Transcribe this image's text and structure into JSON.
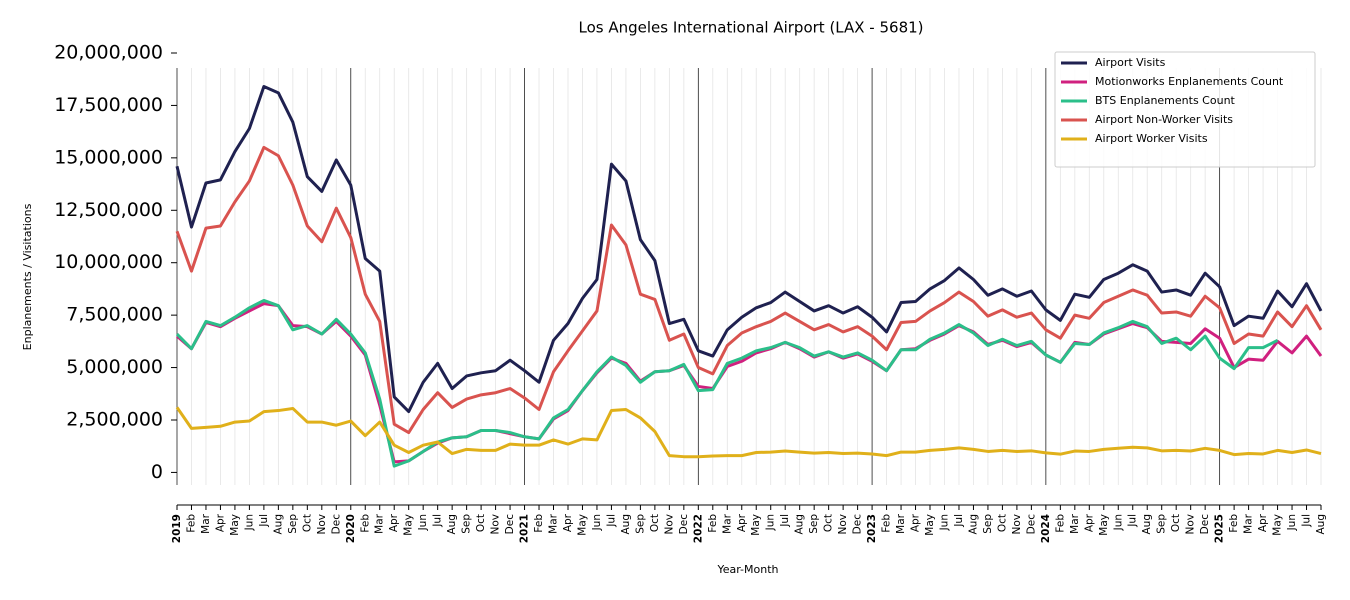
{
  "chart_data": {
    "type": "line",
    "title": "Los Angeles International Airport (LAX - 5681)",
    "x_label": "Year-Month",
    "y_label": "Enplanements / Visitations",
    "categories": [
      "2019",
      "Feb",
      "Mar",
      "Apr",
      "May",
      "Jun",
      "Jul",
      "Aug",
      "Sep",
      "Oct",
      "Nov",
      "Dec",
      "2020",
      "Feb",
      "Mar",
      "Apr",
      "May",
      "Jun",
      "Jul",
      "Aug",
      "Sep",
      "Oct",
      "Nov",
      "Dec",
      "2021",
      "Feb",
      "Mar",
      "Apr",
      "May",
      "Jun",
      "Jul",
      "Aug",
      "Sep",
      "Oct",
      "Nov",
      "Dec",
      "2022",
      "Feb",
      "Mar",
      "Apr",
      "May",
      "Jun",
      "Jul",
      "Aug",
      "Sep",
      "Oct",
      "Nov",
      "Dec",
      "2023",
      "Feb",
      "Mar",
      "Apr",
      "May",
      "Jun",
      "Jul",
      "Aug",
      "Sep",
      "Oct",
      "Nov",
      "Dec",
      "2024",
      "Feb",
      "Mar",
      "Apr",
      "May",
      "Jun",
      "Jul",
      "Aug",
      "Sep",
      "Oct",
      "Nov",
      "Dec",
      "2025",
      "Feb",
      "Mar",
      "Apr",
      "May",
      "Jun",
      "Jul",
      "Aug"
    ],
    "ylim": [
      -600000,
      20000000
    ],
    "yticks": [
      0,
      {
        "value": 2500000,
        "label": "2,500,000"
      },
      {
        "value": 5000000,
        "label": "5,000,000"
      },
      {
        "value": 7500000,
        "label": "7,500,000"
      },
      {
        "value": 10000000,
        "label": "10,000,000"
      },
      {
        "value": 12500000,
        "label": "12,500,000"
      },
      {
        "value": 15000000,
        "label": "15,000,000"
      },
      {
        "value": 17500000,
        "label": "17,500,000"
      },
      {
        "value": 20000000,
        "label": "20,000,000"
      }
    ],
    "grid": true,
    "legend_position": "upper right",
    "series": [
      {
        "name": "Airport Visits",
        "color": "#1f2150",
        "values": [
          14600000.0,
          11700000.0,
          13800000.0,
          13950000.0,
          15300000.0,
          16400000.0,
          18400000.0,
          18100000.0,
          16700000.0,
          14100000.0,
          13400000.0,
          14900000.0,
          13700000.0,
          10200000.0,
          9600000.0,
          3600000.0,
          2900000.0,
          4300000.0,
          5200000.0,
          4000000.0,
          4600000.0,
          4750000.0,
          4850000.0,
          5350000.0,
          4850000.0,
          4300000.0,
          6300000.0,
          7100000.0,
          8300000.0,
          9200000.0,
          14700000.0,
          13900000.0,
          11100000.0,
          10100000.0,
          7100000.0,
          7300000.0,
          5800000.0,
          5550000.0,
          6800000.0,
          7400000.0,
          7850000.0,
          8100000.0,
          8600000.0,
          8150000.0,
          7700000.0,
          7950000.0,
          7600000.0,
          7900000.0,
          7400000.0,
          6700000.0,
          8100000.0,
          8150000.0,
          8750000.0,
          9150000.0,
          9750000.0,
          9200000.0,
          8450000.0,
          8750000.0,
          8400000.0,
          8650000.0,
          7750000.0,
          7250000.0,
          8500000.0,
          8350000.0,
          9200000.0,
          9500000.0,
          9900000.0,
          9600000.0,
          8600000.0,
          8700000.0,
          8450000.0,
          9500000.0,
          8850000.0,
          7000000.0,
          7450000.0,
          7350000.0,
          8650000.0,
          7900000.0,
          9000000.0,
          7700000.0
        ]
      },
      {
        "name": "Motionworks Enplanements Count",
        "color": "#d0207f",
        "values": [
          6500000.0,
          5900000.0,
          7150000.0,
          6950000.0,
          7350000.0,
          7700000.0,
          8050000.0,
          7950000.0,
          7000000.0,
          6950000.0,
          6600000.0,
          7200000.0,
          6500000.0,
          5600000.0,
          3200000.0,
          500000.0,
          550000.0,
          1000000.0,
          1400000.0,
          1650000.0,
          1700000.0,
          2000000.0,
          2000000.0,
          1850000.0,
          1700000.0,
          1600000.0,
          2550000.0,
          2950000.0,
          3900000.0,
          4750000.0,
          5450000.0,
          5200000.0,
          4350000.0,
          4800000.0,
          4850000.0,
          5100000.0,
          4100000.0,
          4000000.0,
          5050000.0,
          5300000.0,
          5700000.0,
          5900000.0,
          6200000.0,
          5900000.0,
          5500000.0,
          5750000.0,
          5450000.0,
          5650000.0,
          5300000.0,
          4850000.0,
          5850000.0,
          5900000.0,
          6300000.0,
          6600000.0,
          7000000.0,
          6700000.0,
          6100000.0,
          6300000.0,
          6000000.0,
          6200000.0,
          5600000.0,
          5250000.0,
          6200000.0,
          6100000.0,
          6600000.0,
          6850000.0,
          7100000.0,
          6900000.0,
          6250000.0,
          6200000.0,
          6150000.0,
          6850000.0,
          6400000.0,
          5000000.0,
          5400000.0,
          5350000.0,
          6250000.0,
          5700000.0,
          6500000.0,
          5550000.0
        ]
      },
      {
        "name": "BTS Enplanements Count",
        "color": "#2bbf8a",
        "values": [
          6600000.0,
          5900000.0,
          7200000.0,
          7000000.0,
          7400000.0,
          7850000.0,
          8200000.0,
          7950000.0,
          6800000.0,
          7000000.0,
          6600000.0,
          7300000.0,
          6600000.0,
          5700000.0,
          3500000.0,
          300000.0,
          550000.0,
          1000000.0,
          1450000.0,
          1650000.0,
          1700000.0,
          2000000.0,
          2000000.0,
          1900000.0,
          1700000.0,
          1600000.0,
          2600000.0,
          3000000.0,
          3900000.0,
          4800000.0,
          5500000.0,
          5100000.0,
          4300000.0,
          4800000.0,
          4850000.0,
          5150000.0,
          3900000.0,
          3950000.0,
          5200000.0,
          5450000.0,
          5800000.0,
          5950000.0,
          6200000.0,
          5950000.0,
          5550000.0,
          5750000.0,
          5500000.0,
          5700000.0,
          5350000.0,
          4850000.0,
          5850000.0,
          5850000.0,
          6350000.0,
          6650000.0,
          7050000.0,
          6650000.0,
          6050000.0,
          6350000.0,
          6050000.0,
          6250000.0,
          5600000.0,
          5250000.0,
          6150000.0,
          6100000.0,
          6650000.0,
          6900000.0,
          7200000.0,
          6950000.0,
          6150000.0,
          6400000.0,
          5850000.0,
          6500000.0,
          5450000.0,
          4950000.0,
          5950000.0,
          5950000.0,
          6300000.0,
          null,
          null,
          null
        ]
      },
      {
        "name": "Airport Non-Worker Visits",
        "color": "#d9534f",
        "values": [
          11500000.0,
          9600000.0,
          11650000.0,
          11750000.0,
          12900000.0,
          13900000.0,
          15500000.0,
          15100000.0,
          13700000.0,
          11750000.0,
          11000000.0,
          12600000.0,
          11200000.0,
          8500000.0,
          7200000.0,
          2300000.0,
          1900000.0,
          3000000.0,
          3800000.0,
          3100000.0,
          3500000.0,
          3700000.0,
          3800000.0,
          4000000.0,
          3550000.0,
          3000000.0,
          4800000.0,
          5800000.0,
          6750000.0,
          7700000.0,
          11800000.0,
          10850000.0,
          8500000.0,
          8250000.0,
          6300000.0,
          6600000.0,
          5000000.0,
          4700000.0,
          6050000.0,
          6650000.0,
          6950000.0,
          7200000.0,
          7600000.0,
          7200000.0,
          6800000.0,
          7050000.0,
          6700000.0,
          6950000.0,
          6500000.0,
          5850000.0,
          7150000.0,
          7200000.0,
          7700000.0,
          8100000.0,
          8600000.0,
          8150000.0,
          7450000.0,
          7750000.0,
          7400000.0,
          7600000.0,
          6800000.0,
          6400000.0,
          7500000.0,
          7350000.0,
          8100000.0,
          8400000.0,
          8700000.0,
          8450000.0,
          7600000.0,
          7650000.0,
          7450000.0,
          8400000.0,
          7850000.0,
          6150000.0,
          6600000.0,
          6500000.0,
          7650000.0,
          6950000.0,
          7950000.0,
          6800000.0
        ]
      },
      {
        "name": "Airport Worker Visits",
        "color": "#e0b01a",
        "values": [
          3100000.0,
          2100000.0,
          2150000.0,
          2200000.0,
          2400000.0,
          2450000.0,
          2900000.0,
          2950000.0,
          3050000.0,
          2400000.0,
          2400000.0,
          2250000.0,
          2450000.0,
          1750000.0,
          2400000.0,
          1300000.0,
          950000.0,
          1300000.0,
          1450000.0,
          900000.0,
          1100000.0,
          1050000.0,
          1050000.0,
          1350000.0,
          1300000.0,
          1300000.0,
          1550000.0,
          1350000.0,
          1600000.0,
          1550000.0,
          2950000.0,
          3000000.0,
          2600000.0,
          1950000.0,
          800000.0,
          750000.0,
          750000.0,
          780000.0,
          800000.0,
          800000.0,
          950000.0,
          970000.0,
          1020000.0,
          970000.0,
          920000.0,
          950000.0,
          900000.0,
          920000.0,
          880000.0,
          800000.0,
          970000.0,
          970000.0,
          1050000.0,
          1100000.0,
          1170000.0,
          1100000.0,
          1000000.0,
          1050000.0,
          1000000.0,
          1030000.0,
          930000.0,
          870000.0,
          1020000.0,
          1000000.0,
          1100000.0,
          1150000.0,
          1200000.0,
          1170000.0,
          1030000.0,
          1050000.0,
          1020000.0,
          1150000.0,
          1050000.0,
          850000.0,
          900000.0,
          880000.0,
          1050000.0,
          950000.0,
          1070000.0,
          900000.0
        ]
      }
    ]
  }
}
